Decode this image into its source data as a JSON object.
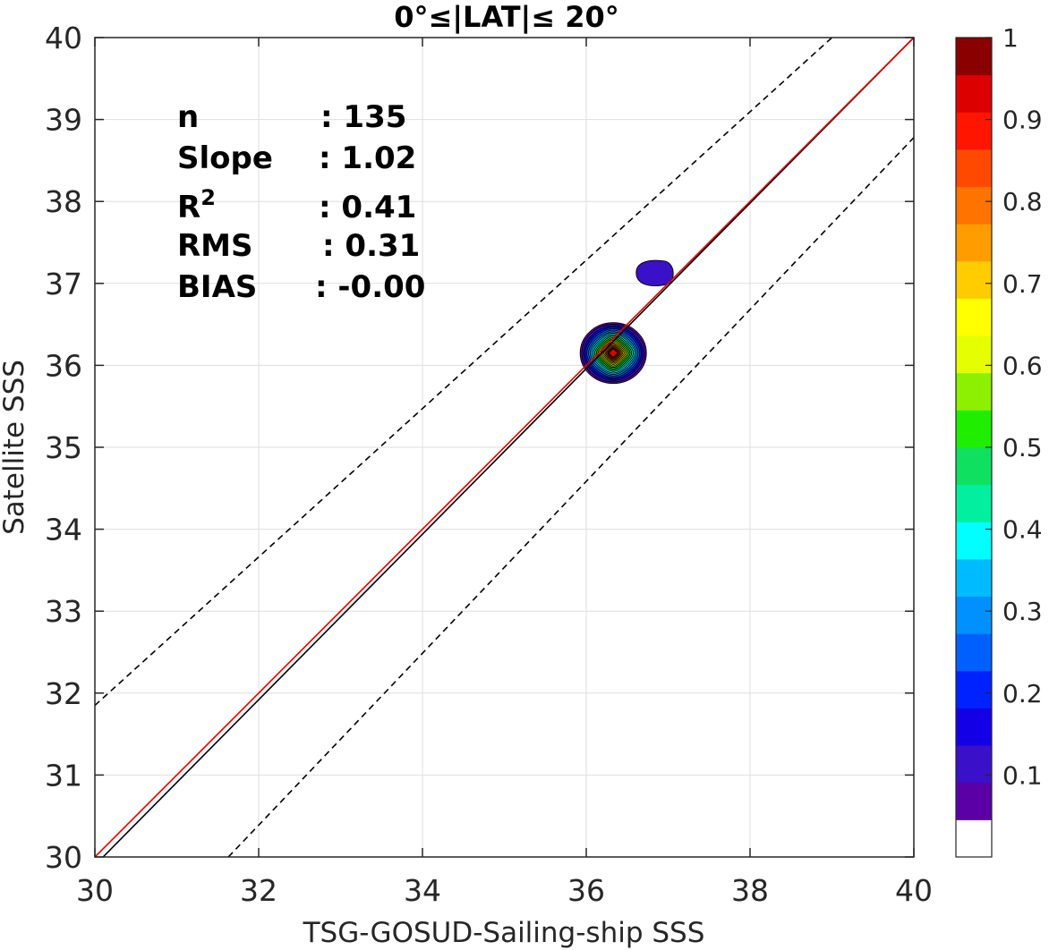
{
  "chart_data": {
    "type": "contour-density",
    "title": "0°≤|LAT|≤ 20°",
    "xlabel": "TSG-GOSUD-Sailing-ship SSS",
    "ylabel": "Satellite SSS",
    "xlim": [
      30,
      40
    ],
    "ylim": [
      30,
      40
    ],
    "xticks": [
      "30",
      "32",
      "34",
      "36",
      "38",
      "40"
    ],
    "yticks": [
      "30",
      "31",
      "32",
      "33",
      "34",
      "35",
      "36",
      "37",
      "38",
      "39",
      "40"
    ],
    "grid": true,
    "lines": [
      {
        "role": "identity",
        "style": "solid",
        "color": "#000000",
        "points": [
          [
            30.1,
            30
          ],
          [
            40,
            40
          ]
        ]
      },
      {
        "role": "regression",
        "style": "solid",
        "color": "#dd0000",
        "points": [
          [
            30,
            30
          ],
          [
            40,
            40
          ]
        ]
      },
      {
        "role": "upper-bound",
        "style": "dashed",
        "color": "#000000",
        "points": [
          [
            30,
            31.85
          ],
          [
            39.0,
            40
          ]
        ]
      },
      {
        "role": "lower-bound",
        "style": "dashed",
        "color": "#000000",
        "points": [
          [
            31.63,
            30
          ],
          [
            40,
            38.78
          ]
        ]
      }
    ],
    "density": {
      "peak": {
        "x": 36.33,
        "y": 36.15
      },
      "secondary": {
        "x": 36.83,
        "y": 37.13,
        "level": 0.1
      }
    },
    "colorbar": {
      "min": 0,
      "max": 1,
      "ticks": [
        "0.1",
        "0.2",
        "0.3",
        "0.4",
        "0.5",
        "0.6",
        "0.7",
        "0.8",
        "0.9",
        "1"
      ],
      "colors": [
        "#ffffff",
        "#5a00a6",
        "#3a10c8",
        "#1400e6",
        "#0022ff",
        "#0060ff",
        "#0090ff",
        "#00bbff",
        "#00ffff",
        "#00f0a0",
        "#10e060",
        "#20ee00",
        "#8cf000",
        "#e6ff00",
        "#ffff00",
        "#ffcc00",
        "#ff9d00",
        "#ff7300",
        "#ff4800",
        "#ff1500",
        "#dd0000",
        "#8a0000"
      ]
    },
    "stats": [
      {
        "label": "n",
        "value": ": 135"
      },
      {
        "label": "Slope",
        "value": ": 1.02"
      },
      {
        "label": "R",
        "sup": "2",
        "value": ": 0.41"
      },
      {
        "label": "RMS",
        "value": ": 0.31"
      },
      {
        "label": "BIAS",
        "value": ": -0.00"
      }
    ]
  }
}
